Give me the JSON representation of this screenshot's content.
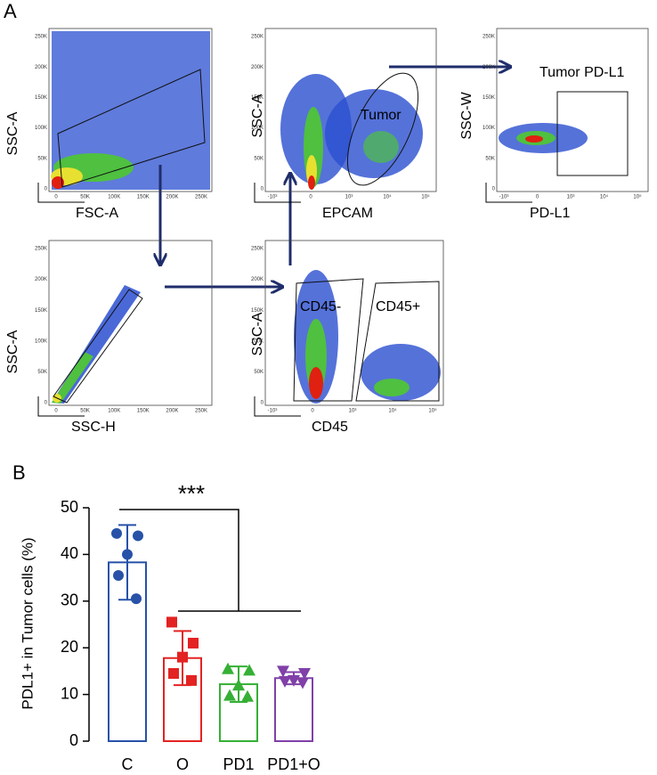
{
  "panel_a": {
    "label": "A",
    "plots": [
      {
        "x_label": "FSC-A",
        "y_label": "SSC-A",
        "xticks": [
          "0",
          "50K",
          "100K",
          "150K",
          "200K",
          "250K"
        ],
        "yticks": [
          "0",
          "50K",
          "100K",
          "150K",
          "200K",
          "250K"
        ],
        "gates": []
      },
      {
        "x_label": "EPCAM",
        "y_label": "SSC-A",
        "xticks": [
          "-10³",
          "0",
          "10³",
          "10⁴",
          "10⁵"
        ],
        "yticks": [
          "0",
          "50K",
          "100K",
          "150K",
          "200K",
          "250K"
        ],
        "gates": [
          "Tumor"
        ]
      },
      {
        "x_label": "PD-L1",
        "y_label": "SSC-W",
        "xticks": [
          "-10³",
          "0",
          "10³",
          "10⁴",
          "10⁵"
        ],
        "yticks": [
          "0",
          "50K",
          "100K",
          "150K",
          "200K",
          "250K"
        ],
        "gates": [
          "Tumor PD-L1"
        ]
      },
      {
        "x_label": "SSC-H",
        "y_label": "SSC-A",
        "xticks": [
          "0",
          "50K",
          "100K",
          "150K",
          "200K",
          "250K"
        ],
        "yticks": [
          "0",
          "50K",
          "100K",
          "150K",
          "200K",
          "250K"
        ],
        "gates": []
      },
      {
        "x_label": "CD45",
        "y_label": "SSC-A",
        "xticks": [
          "-10³",
          "0",
          "10³",
          "10⁴",
          "10⁵"
        ],
        "yticks": [
          "0",
          "50K",
          "100K",
          "150K",
          "200K",
          "250K"
        ],
        "gates": [
          "CD45-",
          "CD45+"
        ]
      }
    ]
  },
  "chart_data": {
    "type": "bar",
    "panel_label": "B",
    "y_label": "PDL1+ in Tumor cells (%)",
    "categories": [
      "C",
      "O",
      "PD1",
      "PD1+O"
    ],
    "values": [
      38.3,
      17.8,
      12.2,
      13.5
    ],
    "errors": [
      8,
      5.8,
      3.8,
      1.3
    ],
    "points": [
      [
        44.5,
        44,
        40,
        35.5,
        30.5
      ],
      [
        25.5,
        21,
        18,
        14.5,
        13
      ],
      [
        15.5,
        15.2,
        12,
        9.8,
        9.6
      ],
      [
        15,
        14.5,
        13,
        12.8,
        12.5
      ]
    ],
    "colors": [
      "#2752a8",
      "#e32222",
      "#35b035",
      "#8040a8"
    ],
    "markers": [
      "circle",
      "square",
      "triangle-up",
      "triangle-down"
    ],
    "annotation": "***",
    "ylim": [
      0,
      50
    ],
    "yticks": [
      0,
      10,
      20,
      30,
      40,
      50
    ]
  }
}
